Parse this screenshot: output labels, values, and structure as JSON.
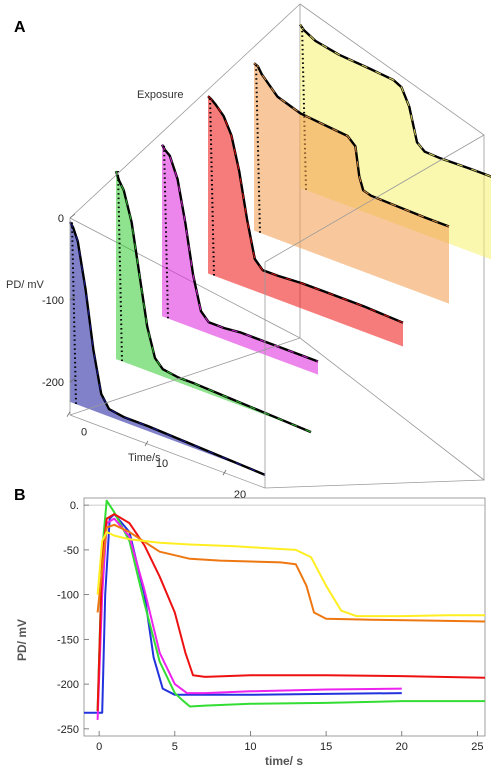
{
  "chart_data": [
    {
      "panel": "A",
      "type": "area",
      "xlabel": "Time/s",
      "ylabel": "PD/ mV",
      "zlabel": "Exposure",
      "xticks": [
        "0",
        "10",
        "20"
      ],
      "yticks": [
        "0",
        "-100",
        "-200"
      ],
      "xlim": [
        0,
        25
      ],
      "ylim": [
        -240,
        0
      ],
      "series": [
        {
          "color": "#1a1a9e",
          "x": [
            0,
            0.4,
            1,
            2,
            3,
            4,
            5,
            7,
            10,
            15,
            20,
            25
          ],
          "y": [
            -5,
            -10,
            -25,
            -80,
            -150,
            -200,
            -215,
            -218,
            -218,
            -220,
            -222,
            -224
          ]
        },
        {
          "color": "#33cc33",
          "x": [
            0,
            0.4,
            1,
            2,
            3,
            4,
            5,
            6,
            8,
            10,
            15,
            20,
            25
          ],
          "y": [
            5,
            -5,
            -15,
            -50,
            -110,
            -170,
            -205,
            -215,
            -218,
            -218,
            -220,
            -222,
            -224
          ]
        },
        {
          "color": "#dd22dd",
          "x": [
            0,
            0.4,
            1,
            2,
            3,
            4,
            5,
            6,
            8,
            10,
            15,
            20
          ],
          "y": [
            -15,
            -20,
            -25,
            -50,
            -100,
            -160,
            -200,
            -210,
            -210,
            -208,
            -208,
            -208
          ]
        },
        {
          "color": "#ee1111",
          "x": [
            0,
            0.4,
            1,
            2,
            3,
            4,
            5,
            6,
            7,
            9,
            12,
            15,
            20,
            25
          ],
          "y": [
            -8,
            -10,
            -15,
            -25,
            -45,
            -85,
            -140,
            -185,
            -195,
            -195,
            -193,
            -193,
            -193,
            -195
          ]
        },
        {
          "color": "#f39a4a",
          "x": [
            0,
            0.5,
            1,
            3,
            6,
            9,
            12,
            13,
            13.5,
            14,
            15,
            18,
            22,
            25
          ],
          "y": [
            -20,
            -22,
            -30,
            -50,
            -60,
            -63,
            -66,
            -75,
            -110,
            -125,
            -128,
            -129,
            -130,
            -130
          ]
        },
        {
          "color": "#f5f06e",
          "x": [
            0,
            0.5,
            2,
            5,
            9,
            12,
            13,
            14,
            15,
            16,
            18,
            22,
            25
          ],
          "y": [
            -25,
            -30,
            -38,
            -44,
            -47,
            -50,
            -55,
            -75,
            -115,
            -123,
            -124,
            -123,
            -123
          ]
        }
      ]
    },
    {
      "panel": "B",
      "type": "line",
      "xlabel": "time/ s",
      "ylabel": "PD/ mV",
      "xticks": [
        "0",
        "5",
        "10",
        "15",
        "20",
        "25"
      ],
      "yticks": [
        "0.",
        "-50",
        "-100",
        "-150",
        "-200",
        "-250"
      ],
      "xlim": [
        -1,
        25.5
      ],
      "ylim": [
        -258,
        8
      ],
      "grid": false,
      "series": [
        {
          "color": "#2233dd",
          "x": [
            -1,
            0.2,
            0.4,
            0.7,
            1,
            2,
            3,
            3.6,
            4.2,
            5,
            7,
            10,
            15,
            20
          ],
          "y": [
            -232,
            -232,
            -100,
            -15,
            -10,
            -30,
            -100,
            -170,
            -205,
            -212,
            -212,
            -212,
            -211,
            -210
          ]
        },
        {
          "color": "#33dd33",
          "x": [
            -0.1,
            0.2,
            0.5,
            1,
            2,
            3,
            4,
            5,
            5.5,
            6,
            7,
            10,
            15,
            20,
            25.5
          ],
          "y": [
            -230,
            -50,
            5,
            -8,
            -40,
            -110,
            -175,
            -210,
            -218,
            -225,
            -224,
            -222,
            -221,
            -219,
            -219
          ]
        },
        {
          "color": "#ee22ee",
          "x": [
            -0.1,
            0.2,
            0.5,
            1,
            2,
            3,
            4,
            5,
            5.8,
            7,
            10,
            15,
            20
          ],
          "y": [
            -240,
            -100,
            -20,
            -15,
            -35,
            -95,
            -165,
            -200,
            -210,
            -210,
            -208,
            -206,
            -205
          ]
        },
        {
          "color": "#ee1111",
          "x": [
            -0.1,
            0.2,
            0.5,
            1,
            2,
            3,
            4,
            5,
            5.7,
            6.2,
            7,
            10,
            15,
            20,
            25.5
          ],
          "y": [
            -230,
            -60,
            -15,
            -10,
            -20,
            -45,
            -80,
            -120,
            -165,
            -190,
            -192,
            -190,
            -190,
            -191,
            -193
          ]
        },
        {
          "color": "#ee7711",
          "x": [
            -0.1,
            0.2,
            0.5,
            1,
            2,
            4,
            6,
            8,
            10,
            12,
            13,
            13.7,
            14.2,
            15,
            18,
            22,
            25.5
          ],
          "y": [
            -120,
            -70,
            -25,
            -22,
            -30,
            -52,
            -60,
            -62,
            -63,
            -64,
            -66,
            -90,
            -120,
            -127,
            -128,
            -129,
            -130
          ]
        },
        {
          "color": "#ffee22",
          "x": [
            -0.1,
            0.2,
            0.5,
            1,
            2,
            4,
            6,
            9,
            11,
            13,
            14,
            15,
            16,
            17,
            20,
            23,
            25.5
          ],
          "y": [
            -100,
            -40,
            -30,
            -34,
            -38,
            -42,
            -44,
            -46,
            -48,
            -50,
            -58,
            -90,
            -118,
            -124,
            -124,
            -123,
            -123
          ]
        }
      ]
    }
  ],
  "labels": {
    "panel_a": "A",
    "panel_b": "B"
  }
}
